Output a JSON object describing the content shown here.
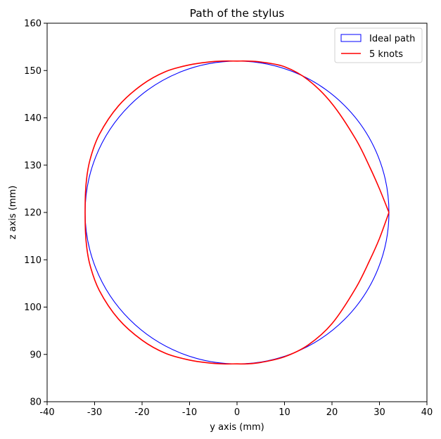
{
  "chart_data": {
    "type": "line",
    "title": "Path of the stylus",
    "xlabel": "y axis (mm)",
    "ylabel": "z axis (mm)",
    "xlim": [
      -40,
      40
    ],
    "ylim": [
      80,
      160
    ],
    "xticks": [
      -40,
      -30,
      -20,
      -10,
      0,
      10,
      20,
      30,
      40
    ],
    "yticks": [
      80,
      90,
      100,
      110,
      120,
      130,
      140,
      150,
      160
    ],
    "grid": false,
    "legend_position": "top-right",
    "series": [
      {
        "name": "Ideal path",
        "style": "circle",
        "color": "#0000ff",
        "center": [
          0,
          120
        ],
        "radius": 32
      },
      {
        "name": "5 knots",
        "style": "line",
        "color": "#ff0000",
        "x": [
          32,
          30,
          28,
          25,
          20,
          15,
          10,
          5,
          2,
          0,
          -3,
          -6,
          -10,
          -15,
          -20,
          -25,
          -29,
          -31,
          -31.8,
          -32,
          -31.8,
          -31,
          -29,
          -25,
          -20,
          -15,
          -10,
          -6,
          -3,
          0,
          2,
          5,
          10,
          15,
          20,
          25,
          28,
          30,
          32
        ],
        "y": [
          120,
          125,
          129.5,
          135.5,
          143,
          148,
          150.8,
          151.8,
          152,
          152,
          152,
          151.8,
          151.2,
          149.8,
          147,
          142.5,
          136.5,
          131,
          126,
          120,
          114,
          109,
          103.5,
          97.5,
          93,
          90.2,
          88.8,
          88.2,
          88,
          88,
          88,
          88.3,
          89.5,
          92,
          96.5,
          104,
          110,
          114.5,
          120
        ]
      }
    ]
  }
}
